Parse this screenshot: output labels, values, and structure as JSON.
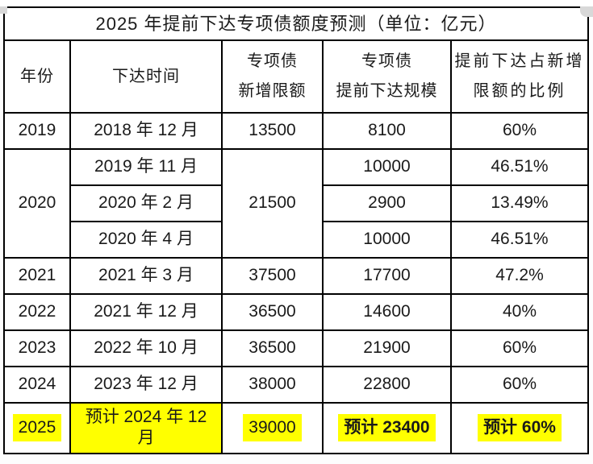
{
  "colors": {
    "highlight": "#ffff00",
    "border": "#000000",
    "text": "#1a1a1a",
    "background": "#ffffff"
  },
  "title": "2025 年提前下达专项债额度预测（单位：亿元）",
  "header": {
    "columns": [
      {
        "lines": [
          "年份"
        ]
      },
      {
        "lines": [
          "下达时间"
        ]
      },
      {
        "lines": [
          "专项债",
          "新增限额"
        ]
      },
      {
        "lines": [
          "专项债",
          "提前下达规模"
        ]
      },
      {
        "lines": [
          "提前下达占新增",
          "限额的比例"
        ]
      }
    ]
  },
  "rows": [
    {
      "year": "2019",
      "quota": "13500",
      "sub": [
        {
          "time": "2018 年 12 月",
          "scale": "8100",
          "ratio": "60%"
        }
      ]
    },
    {
      "year": "2020",
      "quota": "21500",
      "sub": [
        {
          "time": "2019 年 11 月",
          "scale": "10000",
          "ratio": "46.51%"
        },
        {
          "time": "2020 年 2 月",
          "scale": "2900",
          "ratio": "13.49%"
        },
        {
          "time": "2020 年 4 月",
          "scale": "10000",
          "ratio": "46.51%"
        }
      ]
    },
    {
      "year": "2021",
      "quota": "37500",
      "sub": [
        {
          "time": "2021 年 3 月",
          "scale": "17700",
          "ratio": "47.2%"
        }
      ]
    },
    {
      "year": "2022",
      "quota": "36500",
      "sub": [
        {
          "time": "2021 年 12 月",
          "scale": "14600",
          "ratio": "40%"
        }
      ]
    },
    {
      "year": "2023",
      "quota": "36500",
      "sub": [
        {
          "time": "2022 年 10 月",
          "scale": "21900",
          "ratio": "60%"
        }
      ]
    },
    {
      "year": "2024",
      "quota": "38000",
      "sub": [
        {
          "time": "2023 年 12 月",
          "scale": "22800",
          "ratio": "60%"
        }
      ]
    },
    {
      "year": "2025",
      "quota": "39000",
      "highlighted": true,
      "sub": [
        {
          "time": "预计 2024 年 12 月",
          "scale": "预计 23400",
          "ratio": "预计 60%"
        }
      ]
    }
  ]
}
